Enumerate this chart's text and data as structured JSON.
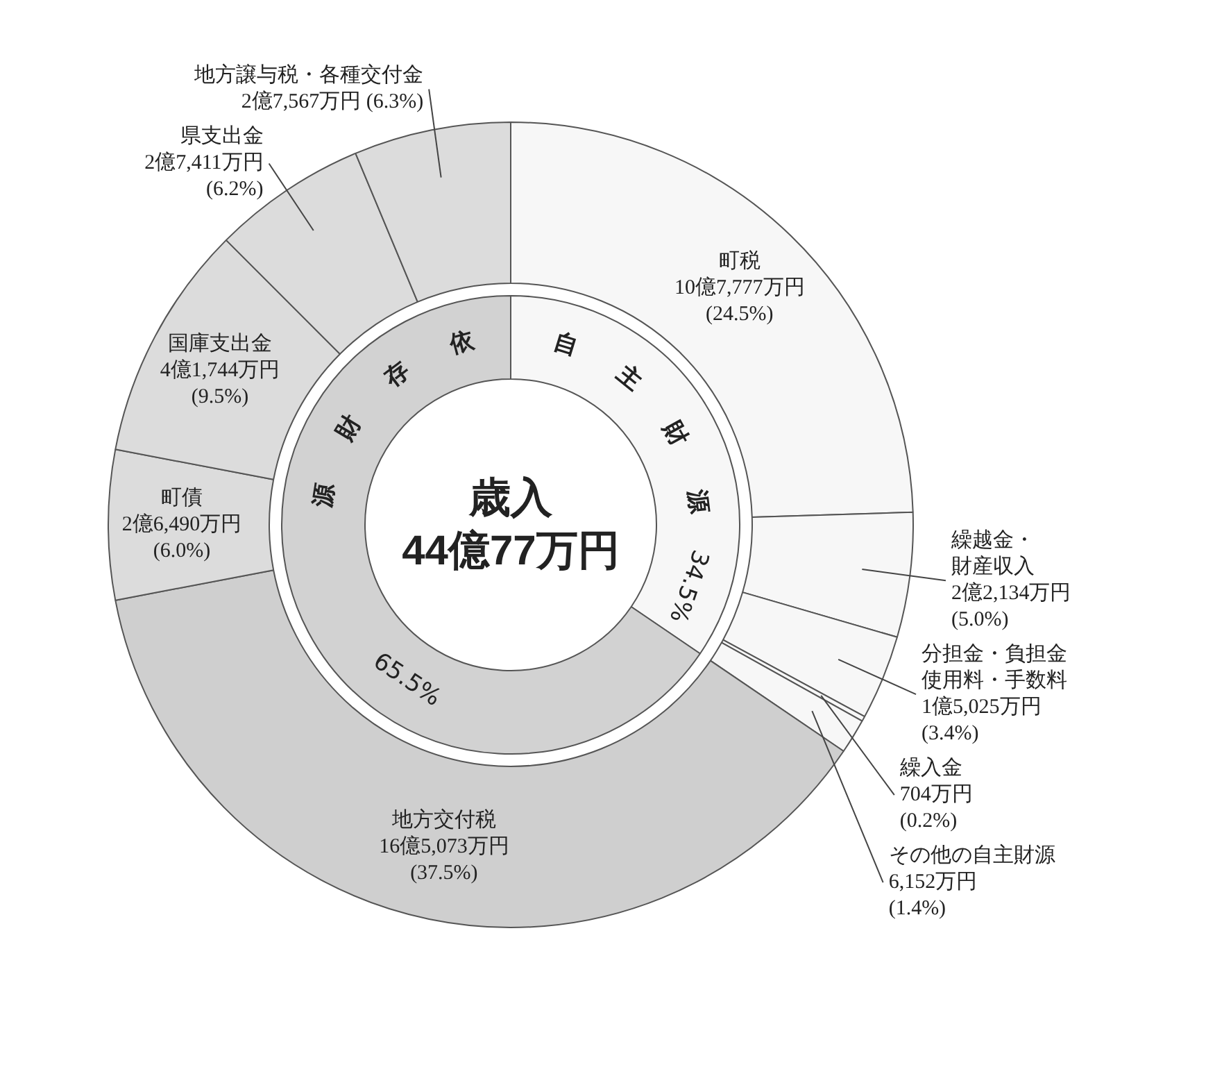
{
  "chart_data": [
    {
      "type": "donut",
      "categories": [
        "町税",
        "繰越金・財産収入",
        "分担金・負担金使用料・手数料",
        "繰入金",
        "その他の自主財源",
        "地方交付税",
        "町債",
        "国庫支出金",
        "県支出金",
        "地方譲与税・各種交付金"
      ],
      "values": [
        24.5,
        5.0,
        3.4,
        0.2,
        1.4,
        37.5,
        6.0,
        9.5,
        6.2,
        6.3
      ],
      "value_labels": [
        "10億7,777万円\n(24.5%)",
        "2億2,134万円\n(5.0%)",
        "1億5,025万円\n(3.4%)",
        "704万円\n(0.2%)",
        "6,152万円\n(1.4%)",
        "16億5,073万円\n(37.5%)",
        "2億6,490万円\n(6.0%)",
        "4億1,744万円\n(9.5%)",
        "2億7,411万円\n(6.2%)",
        "2億7,567万円 (6.3%)"
      ],
      "colors": [
        "#f7f7f7",
        "#f7f7f7",
        "#f7f7f7",
        "#f7f7f7",
        "#f7f7f7",
        "#cfcfcf",
        "#dcdcdc",
        "#dcdcdc",
        "#dcdcdc",
        "#dcdcdc"
      ]
    },
    {
      "type": "donut",
      "title": "歳入",
      "subtitle": "44億77万円",
      "categories": [
        "自主財源",
        "依存財源"
      ],
      "values": [
        34.5,
        65.5
      ],
      "value_labels": [
        "34.5%",
        "65.5%"
      ],
      "colors": [
        "#f7f7f7",
        "#d2d2d2"
      ]
    }
  ]
}
